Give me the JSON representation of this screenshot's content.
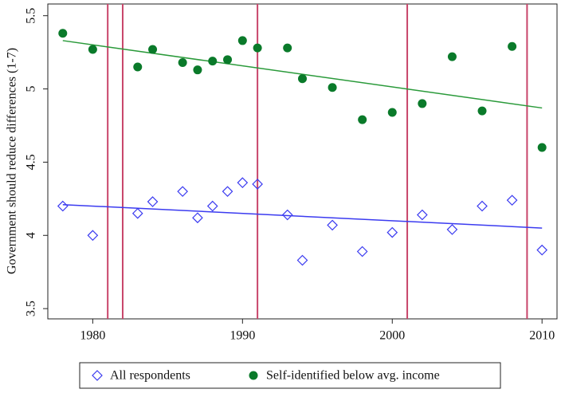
{
  "chart_data": {
    "type": "scatter",
    "ylabel": "Government should reduce differences (1-7)",
    "xlim": [
      1977,
      2011
    ],
    "ylim": [
      3.43,
      5.58
    ],
    "xticks": [
      1980,
      1990,
      2000,
      2010
    ],
    "yticks": [
      3.5,
      4,
      4.5,
      5,
      5.5
    ],
    "legend": "bottom",
    "series": [
      {
        "name": "All respondents",
        "color": "#3b3bf0",
        "marker": "diamond",
        "x": [
          1978,
          1980,
          1983,
          1984,
          1986,
          1987,
          1988,
          1989,
          1990,
          1991,
          1993,
          1994,
          1996,
          1998,
          2000,
          2002,
          2004,
          2006,
          2008,
          2010
        ],
        "values": [
          4.2,
          4.0,
          4.15,
          4.23,
          4.3,
          4.12,
          4.2,
          4.3,
          4.36,
          4.35,
          4.14,
          3.83,
          4.07,
          3.89,
          4.02,
          4.14,
          4.04,
          4.2,
          4.24,
          3.9
        ]
      },
      {
        "name": "Self-identified below avg. income",
        "color": "#0a7a2a",
        "marker": "circle",
        "x": [
          1978,
          1980,
          1983,
          1984,
          1986,
          1987,
          1988,
          1989,
          1990,
          1991,
          1993,
          1994,
          1996,
          1998,
          2000,
          2002,
          2004,
          2006,
          2008,
          2010
        ],
        "values": [
          5.38,
          5.27,
          5.15,
          5.27,
          5.18,
          5.13,
          5.19,
          5.2,
          5.33,
          5.28,
          5.28,
          5.07,
          5.01,
          4.79,
          4.84,
          4.9,
          5.22,
          4.85,
          5.29,
          4.6
        ]
      }
    ],
    "fit_lines": [
      {
        "color": "#3b3bf0",
        "x": [
          1978,
          2010
        ],
        "values": [
          4.21,
          4.05
        ]
      },
      {
        "color": "#2a9a3a",
        "x": [
          1978,
          2010
        ],
        "values": [
          5.33,
          4.87
        ]
      }
    ],
    "vlines": {
      "color": "#c8456a",
      "x": [
        1981,
        1982,
        1991,
        2001,
        2009
      ]
    }
  }
}
